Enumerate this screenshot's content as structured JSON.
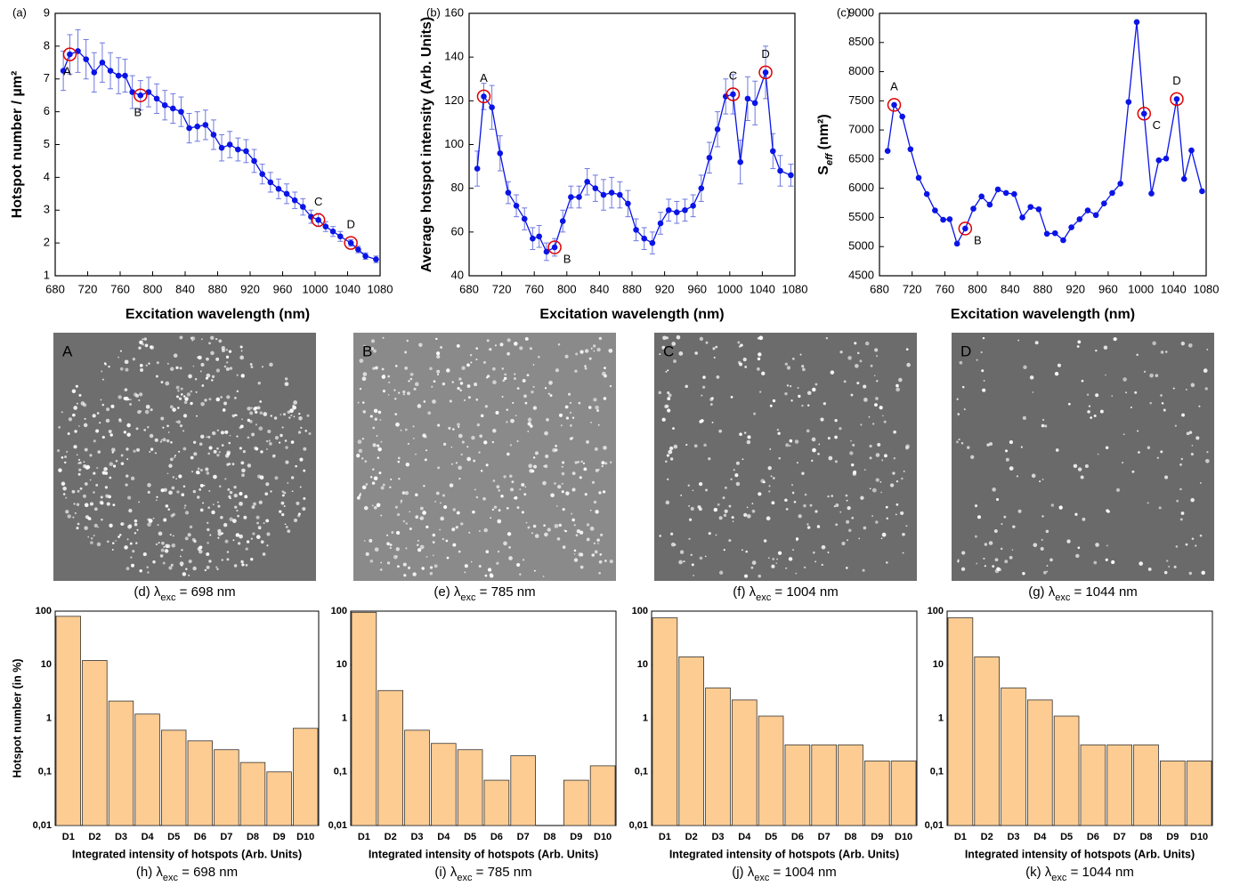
{
  "chart_data": [
    {
      "type": "line",
      "panel": "(a)",
      "xlabel": "Excitation wavelength (nm)",
      "ylabel": "Hotspot number / µm²",
      "x": [
        690,
        698,
        708,
        718,
        728,
        738,
        748,
        758,
        766,
        775,
        785,
        795,
        805,
        815,
        825,
        835,
        845,
        855,
        865,
        875,
        885,
        895,
        905,
        915,
        925,
        935,
        945,
        955,
        965,
        975,
        985,
        995,
        1004,
        1013,
        1022,
        1031,
        1044,
        1053,
        1062,
        1075
      ],
      "values": [
        7.25,
        7.75,
        7.85,
        7.6,
        7.2,
        7.5,
        7.25,
        7.1,
        7.1,
        6.6,
        6.5,
        6.6,
        6.4,
        6.2,
        6.1,
        6.0,
        5.5,
        5.55,
        5.6,
        5.3,
        4.9,
        5.0,
        4.85,
        4.8,
        4.5,
        4.1,
        3.85,
        3.65,
        3.5,
        3.3,
        3.1,
        2.8,
        2.7,
        2.5,
        2.35,
        2.2,
        2.0,
        1.8,
        1.6,
        1.5
      ],
      "errors": [
        0.6,
        0.6,
        0.65,
        0.6,
        0.6,
        0.6,
        0.55,
        0.55,
        0.5,
        0.5,
        0.45,
        0.45,
        0.45,
        0.45,
        0.45,
        0.45,
        0.45,
        0.45,
        0.45,
        0.45,
        0.4,
        0.4,
        0.35,
        0.35,
        0.35,
        0.3,
        0.3,
        0.3,
        0.3,
        0.25,
        0.25,
        0.2,
        0.2,
        0.15,
        0.15,
        0.15,
        0.1,
        0.1,
        0.1,
        0.1
      ],
      "color": "#0a14e6",
      "error_color": "#6e78e0",
      "highlight_color": "#e00000",
      "xlim": [
        680,
        1080
      ],
      "xticks": [
        680,
        720,
        760,
        800,
        840,
        880,
        920,
        960,
        1000,
        1040,
        1080
      ],
      "ylim": [
        1,
        9
      ],
      "yticks": [
        1,
        2,
        3,
        4,
        5,
        6,
        7,
        8,
        9
      ],
      "annotations": [
        {
          "text": "A",
          "x": 698,
          "y": 7.75,
          "position": "below"
        },
        {
          "text": "B",
          "x": 785,
          "y": 6.5,
          "position": "below"
        },
        {
          "text": "C",
          "x": 1004,
          "y": 2.7,
          "position": "above"
        },
        {
          "text": "D",
          "x": 1044,
          "y": 2.0,
          "position": "above"
        }
      ]
    },
    {
      "type": "line",
      "panel": "(b)",
      "xlabel": "Excitation wavelength (nm)",
      "ylabel": "Average hotspot intensity (Arb. Units)",
      "x": [
        690,
        698,
        708,
        718,
        728,
        738,
        748,
        758,
        766,
        775,
        785,
        795,
        805,
        815,
        825,
        835,
        845,
        855,
        865,
        875,
        885,
        895,
        905,
        915,
        925,
        935,
        945,
        955,
        965,
        975,
        985,
        995,
        1004,
        1013,
        1022,
        1031,
        1044,
        1053,
        1062,
        1075
      ],
      "values": [
        89,
        122,
        117,
        96,
        78,
        72,
        66,
        57,
        58,
        51,
        53,
        65,
        76,
        76,
        83,
        80,
        77,
        78,
        77,
        73,
        61,
        57,
        55,
        64,
        70,
        69,
        70,
        72,
        80,
        94,
        107,
        122,
        123,
        92,
        121,
        119,
        133,
        97,
        88,
        86
      ],
      "errors": [
        8,
        6,
        10,
        8,
        5,
        5,
        5,
        5,
        5,
        4,
        4,
        5,
        5,
        5,
        6,
        6,
        7,
        7,
        6,
        6,
        5,
        5,
        5,
        5,
        5,
        5,
        5,
        5,
        6,
        7,
        8,
        8,
        9,
        10,
        10,
        10,
        12,
        8,
        7,
        5
      ],
      "color": "#0a14e6",
      "error_color": "#6e78e0",
      "highlight_color": "#e00000",
      "xlim": [
        680,
        1080
      ],
      "xticks": [
        680,
        720,
        760,
        800,
        840,
        880,
        920,
        960,
        1000,
        1040,
        1080
      ],
      "ylim": [
        40,
        160
      ],
      "yticks": [
        40,
        60,
        80,
        100,
        120,
        140,
        160
      ],
      "annotations": [
        {
          "text": "A",
          "x": 698,
          "y": 122,
          "position": "above"
        },
        {
          "text": "B",
          "x": 785,
          "y": 53,
          "position": "right"
        },
        {
          "text": "C",
          "x": 1004,
          "y": 123,
          "position": "above"
        },
        {
          "text": "D",
          "x": 1044,
          "y": 133,
          "position": "above"
        }
      ]
    },
    {
      "type": "line",
      "panel": "(c)",
      "xlabel": "Excitation wavelength (nm)",
      "ylabel": "S",
      "ylabel_sub": "eff",
      "ylabel_rest": " (nm²)",
      "x": [
        690,
        698,
        708,
        718,
        728,
        738,
        748,
        758,
        766,
        775,
        785,
        795,
        805,
        815,
        825,
        835,
        845,
        855,
        865,
        875,
        885,
        895,
        905,
        915,
        925,
        935,
        945,
        955,
        965,
        975,
        985,
        995,
        1004,
        1013,
        1022,
        1031,
        1044,
        1053,
        1062,
        1075
      ],
      "values": [
        6640,
        7430,
        7230,
        6670,
        6180,
        5900,
        5620,
        5460,
        5470,
        5050,
        5310,
        5650,
        5860,
        5720,
        5980,
        5920,
        5900,
        5500,
        5680,
        5640,
        5220,
        5230,
        5110,
        5330,
        5470,
        5620,
        5540,
        5740,
        5920,
        6080,
        7480,
        8850,
        7280,
        5910,
        6480,
        6510,
        7530,
        6160,
        6650,
        5950
      ],
      "color": "#0a14e6",
      "highlight_color": "#e00000",
      "xlim": [
        680,
        1080
      ],
      "xticks": [
        680,
        720,
        760,
        800,
        840,
        880,
        920,
        960,
        1000,
        1040,
        1080
      ],
      "ylim": [
        4500,
        9000
      ],
      "yticks": [
        4500,
        5000,
        5500,
        6000,
        6500,
        7000,
        7500,
        8000,
        8500,
        9000
      ],
      "annotations": [
        {
          "text": "A",
          "x": 698,
          "y": 7430,
          "position": "above"
        },
        {
          "text": "B",
          "x": 785,
          "y": 5310,
          "position": "right"
        },
        {
          "text": "C",
          "x": 1004,
          "y": 7280,
          "position": "right"
        },
        {
          "text": "D",
          "x": 1044,
          "y": 7530,
          "position": "above"
        }
      ]
    },
    {
      "type": "bar",
      "ylabel": "Hotspot number (in %)",
      "xlabel": "Integrated intensity of hotspots (Arb. Units)",
      "caption": {
        "prefix": "(h) λ",
        "sub": "exc",
        "suffix": " = 698 nm"
      },
      "categories": [
        "D1",
        "D2",
        "D3",
        "D4",
        "D5",
        "D6",
        "D7",
        "D8",
        "D9",
        "D10"
      ],
      "values": [
        80,
        12,
        2.1,
        1.2,
        0.6,
        0.38,
        0.26,
        0.15,
        0.1,
        0.65
      ],
      "color": "#fdcc92",
      "log_scale": true,
      "ylim": [
        0.01,
        100
      ],
      "yticks": [
        {
          "value": 0.01,
          "label": "0,01"
        },
        {
          "value": 0.1,
          "label": "0,1"
        },
        1,
        10,
        100
      ]
    },
    {
      "type": "bar",
      "xlabel": "Integrated intensity of hotspots (Arb. Units)",
      "caption": {
        "prefix": "(i) λ",
        "sub": "exc",
        "suffix": " = 785 nm"
      },
      "categories": [
        "D1",
        "D2",
        "D3",
        "D4",
        "D5",
        "D6",
        "D7",
        "D8",
        "D9",
        "D10"
      ],
      "values": [
        95,
        3.3,
        0.6,
        0.34,
        0.26,
        0.07,
        0.2,
        null,
        0.07,
        0.13
      ],
      "color": "#fdcc92",
      "log_scale": true,
      "ylim": [
        0.01,
        100
      ],
      "yticks": [
        {
          "value": 0.01,
          "label": "0,01"
        },
        {
          "value": 0.1,
          "label": "0,1"
        },
        1,
        10,
        100
      ]
    },
    {
      "type": "bar",
      "xlabel": "Integrated intensity of hotspots (Arb. Units)",
      "caption": {
        "prefix": "(j) λ",
        "sub": "exc",
        "suffix": " = 1004 nm"
      },
      "categories": [
        "D1",
        "D2",
        "D3",
        "D4",
        "D5",
        "D6",
        "D7",
        "D8",
        "D9",
        "D10"
      ],
      "values": [
        75,
        14,
        3.7,
        2.2,
        1.1,
        0.32,
        0.32,
        0.32,
        0.16,
        0.16
      ],
      "color": "#fdcc92",
      "log_scale": true,
      "ylim": [
        0.01,
        100
      ],
      "yticks": [
        {
          "value": 0.01,
          "label": "0,01"
        },
        {
          "value": 0.1,
          "label": "0,1"
        },
        1,
        10,
        100
      ]
    },
    {
      "type": "bar",
      "xlabel": "Integrated intensity of hotspots (Arb. Units)",
      "caption": {
        "prefix": "(k) λ",
        "sub": "exc",
        "suffix": " = 1044 nm"
      },
      "categories": [
        "D1",
        "D2",
        "D3",
        "D4",
        "D5",
        "D6",
        "D7",
        "D8",
        "D9",
        "D10"
      ],
      "values": [
        75,
        14,
        3.7,
        2.2,
        1.1,
        0.32,
        0.32,
        0.32,
        0.16,
        0.16
      ],
      "color": "#fdcc92",
      "log_scale": true,
      "ylim": [
        0.01,
        100
      ],
      "yticks": [
        {
          "value": 0.01,
          "label": "0,01"
        },
        {
          "value": 0.1,
          "label": "0,1"
        },
        1,
        10,
        100
      ]
    }
  ],
  "images": [
    {
      "label": "A",
      "caption": {
        "prefix": "(d) λ",
        "sub": "exc",
        "suffix": " = 698 nm"
      }
    },
    {
      "label": "B",
      "caption": {
        "prefix": "(e) λ",
        "sub": "exc",
        "suffix": " = 785 nm"
      }
    },
    {
      "label": "C",
      "caption": {
        "prefix": "(f) λ",
        "sub": "exc",
        "suffix": " = 1004 nm"
      }
    },
    {
      "label": "D",
      "caption": {
        "prefix": "(g) λ",
        "sub": "exc",
        "suffix": " = 1044 nm"
      }
    }
  ]
}
